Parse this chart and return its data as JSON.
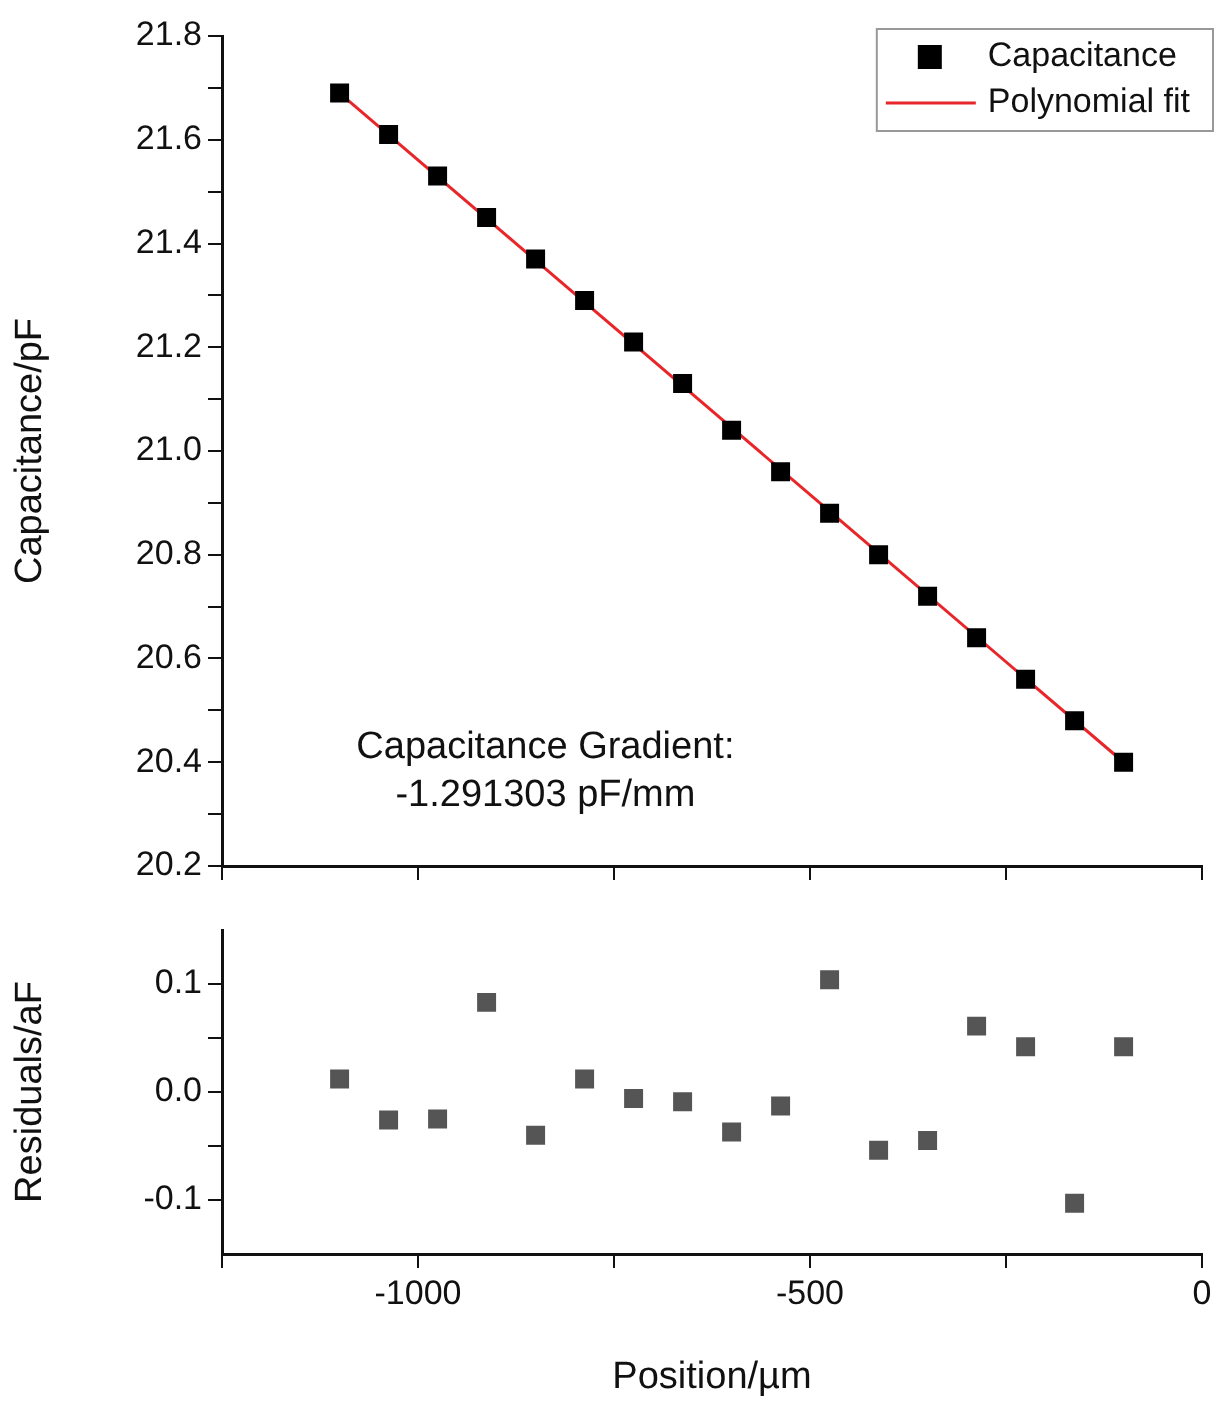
{
  "chart_data": [
    {
      "type": "scatter",
      "ylabel": "Capacitance/pF",
      "x": [
        -1100,
        -1037.5,
        -975,
        -912.5,
        -850,
        -787.5,
        -725,
        -662.5,
        -600,
        -537.5,
        -475,
        -412.5,
        -350,
        -287.5,
        -225,
        -162.5,
        -100
      ],
      "series": [
        {
          "name": "Capacitance",
          "color": "#000000",
          "marker": "square",
          "values": [
            21.69,
            21.61,
            21.53,
            21.45,
            21.37,
            21.29,
            21.21,
            21.13,
            21.04,
            20.96,
            20.88,
            20.8,
            20.72,
            20.64,
            20.56,
            20.48,
            20.4
          ]
        },
        {
          "name": "Polynomial fit",
          "color": "#e8262a",
          "type": "line",
          "x": [
            -1100,
            -100
          ],
          "values": [
            21.69,
            20.4
          ]
        }
      ],
      "xlim": [
        -1250,
        0
      ],
      "xticks": [
        {
          "value": -1250,
          "label": null
        },
        {
          "value": -1000,
          "label": null
        },
        {
          "value": -750,
          "label": null
        },
        {
          "value": -500,
          "label": null
        },
        {
          "value": -250,
          "label": null
        },
        {
          "value": 0,
          "label": null
        }
      ],
      "ylim": [
        20.2,
        21.8
      ],
      "yticks": [
        20.2,
        {
          "value": 20.3,
          "label": null
        },
        20.4,
        {
          "value": 20.5,
          "label": null
        },
        20.6,
        {
          "value": 20.7,
          "label": null
        },
        20.8,
        {
          "value": 20.9,
          "label": null
        },
        {
          "value": 21,
          "label": "21.0"
        },
        {
          "value": 21.1,
          "label": null
        },
        21.2,
        {
          "value": 21.3,
          "label": null
        },
        21.4,
        {
          "value": 21.5,
          "label": null
        },
        21.6,
        {
          "value": 21.7,
          "label": null
        },
        21.8
      ],
      "tick_labels": "y",
      "legend": "top right",
      "grid": false,
      "annotations": [
        "Capacitance Gradient:\n-1.291303 pF/mm"
      ]
    },
    {
      "type": "scatter",
      "xlabel": "Position/µm",
      "ylabel": "Residuals/aF",
      "x": [
        -1100,
        -1037.5,
        -975,
        -912.5,
        -850,
        -787.5,
        -725,
        -662.5,
        -600,
        -537.5,
        -475,
        -412.5,
        -350,
        -287.5,
        -225,
        -162.5,
        -100
      ],
      "series": [
        {
          "color": "#555555",
          "marker": "square",
          "values": [
            0.012,
            -0.026,
            -0.025,
            0.083,
            -0.04,
            0.012,
            -0.006,
            -0.009,
            -0.037,
            -0.013,
            0.104,
            -0.054,
            -0.045,
            0.061,
            0.042,
            -0.103,
            0.042
          ]
        }
      ],
      "xlim": [
        -1250,
        0
      ],
      "xticks": [
        {
          "value": -1250,
          "label": null
        },
        -1000,
        {
          "value": -750,
          "label": null
        },
        -500,
        {
          "value": -250,
          "label": null
        },
        0
      ],
      "ylim": [
        -0.15,
        0.15
      ],
      "yticks": [
        -0.1,
        {
          "value": -0.05,
          "label": null
        },
        {
          "value": 0,
          "label": "0.0"
        },
        {
          "value": 0.05,
          "label": null
        },
        0.1
      ],
      "legend": false,
      "grid": false
    }
  ]
}
